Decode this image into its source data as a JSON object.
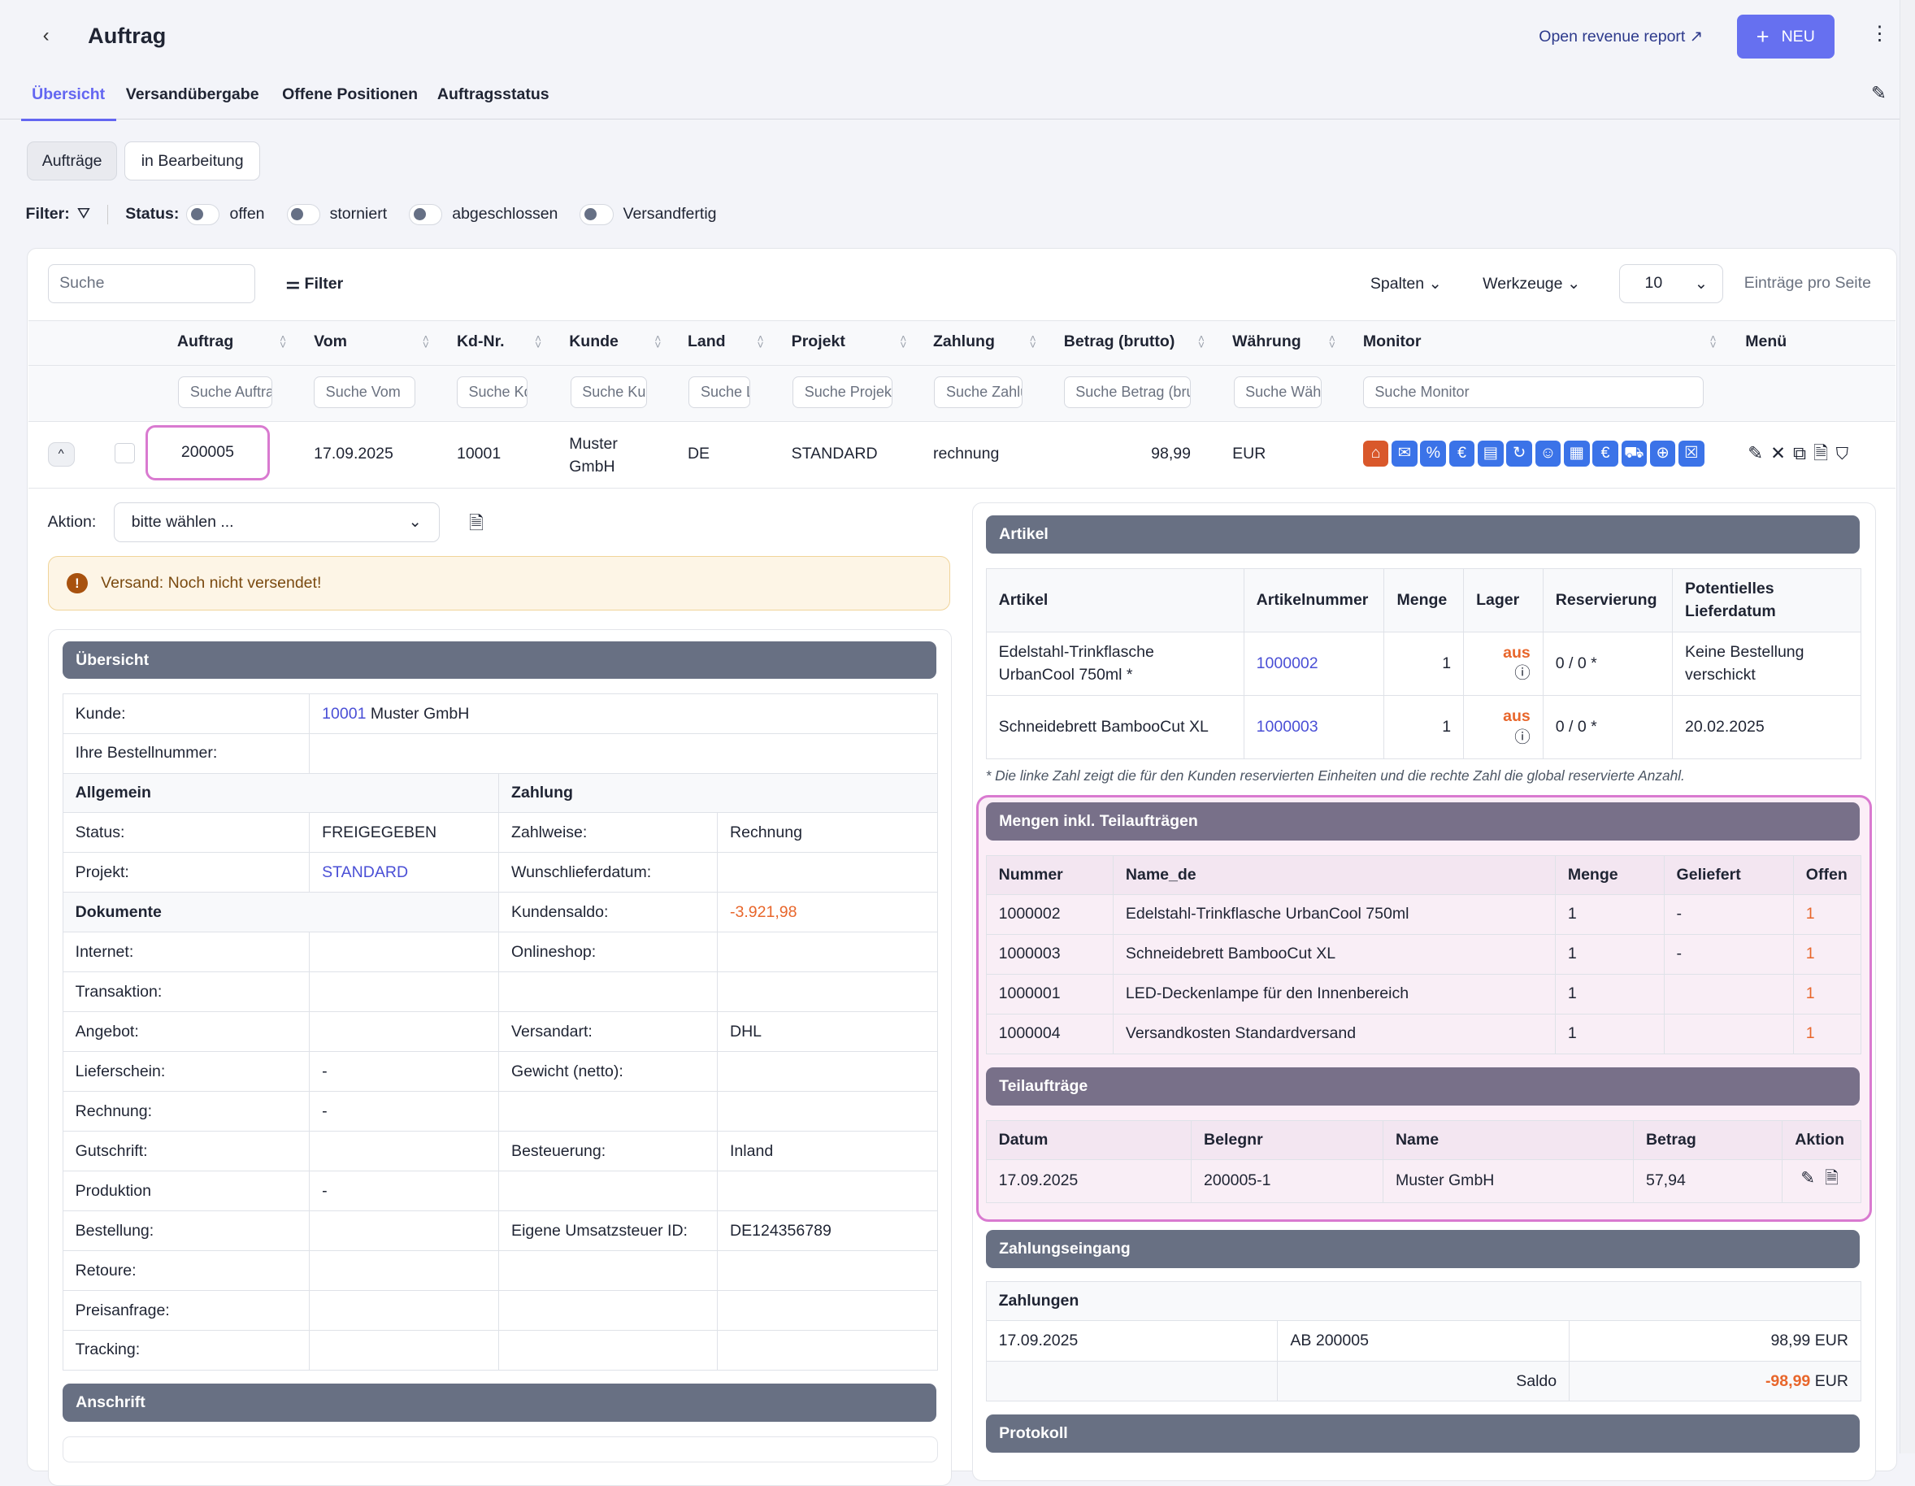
{
  "header": {
    "title": "Auftrag",
    "revenue_link": "Open revenue report",
    "new_button": "NEU"
  },
  "tabs": [
    "Übersicht",
    "Versandübergabe",
    "Offene Positionen",
    "Auftragsstatus"
  ],
  "views": [
    "Aufträge",
    "in Bearbeitung"
  ],
  "filter": {
    "label": "Filter:",
    "status_label": "Status:",
    "toggles": [
      "offen",
      "storniert",
      "abgeschlossen",
      "Versandfertig"
    ]
  },
  "toolbar": {
    "search_placeholder": "Suche",
    "filter_button": "Filter",
    "columns": "Spalten",
    "tools": "Werkzeuge",
    "per_page_value": "10",
    "per_page_label": "Einträge pro Seite"
  },
  "columns": [
    "Auftrag",
    "Vom",
    "Kd-Nr.",
    "Kunde",
    "Land",
    "Projekt",
    "Zahlung",
    "Betrag (brutto)",
    "Währung",
    "Monitor",
    "Menü"
  ],
  "column_search": [
    "Suche Auftrag",
    "Suche Vom",
    "Suche Kd-Nr.",
    "Suche Kunde",
    "Suche Land",
    "Suche Projekt",
    "Suche Zahlung",
    "Suche Betrag (brutto)",
    "Suche Währung",
    "Suche Monitor"
  ],
  "row": {
    "auftrag": "200005",
    "vom": "17.09.2025",
    "kdnr": "10001",
    "kunde": "Muster GmbH",
    "land": "DE",
    "projekt": "STANDARD",
    "zahlung": "rechnung",
    "betrag": "98,99",
    "waehrung": "EUR"
  },
  "monitor_icons": [
    {
      "name": "shipping-blocked",
      "color": "#d9582b"
    },
    {
      "name": "mail",
      "color": "#3b73e8"
    },
    {
      "name": "discount",
      "color": "#3b73e8"
    },
    {
      "name": "euro",
      "color": "#3b73e8"
    },
    {
      "name": "cash",
      "color": "#3b73e8"
    },
    {
      "name": "archive-sync",
      "color": "#3b73e8"
    },
    {
      "name": "customer",
      "color": "#3b73e8"
    },
    {
      "name": "calendar",
      "color": "#3b73e8"
    },
    {
      "name": "coins-euro",
      "color": "#3b73e8"
    },
    {
      "name": "truck",
      "color": "#3b73e8"
    },
    {
      "name": "globe-check",
      "color": "#3b73e8"
    },
    {
      "name": "package-x",
      "color": "#3b73e8"
    }
  ],
  "aktion": {
    "label": "Aktion:",
    "value": "bitte wählen ..."
  },
  "warning": "Versand: Noch nicht versendet!",
  "overview": {
    "title": "Übersicht",
    "kunde_label": "Kunde:",
    "kunde_nr": "10001",
    "kunde_name": "Muster GmbH",
    "bestell_label": "Ihre Bestellnummer:",
    "allgemein": "Allgemein",
    "zahlung": "Zahlung",
    "dokumente": "Dokumente",
    "rows": [
      [
        "Status:",
        "FREIGEGEBEN",
        "Zahlweise:",
        "Rechnung"
      ],
      [
        "Projekt:",
        "STANDARD",
        "Wunschlieferdatum:",
        ""
      ],
      [
        "__dok",
        "",
        "Kundensaldo:",
        "-3.921,98"
      ],
      [
        "Internet:",
        "",
        "Onlineshop:",
        ""
      ],
      [
        "Transaktion:",
        "",
        "",
        ""
      ],
      [
        "Angebot:",
        "",
        "Versandart:",
        "DHL"
      ],
      [
        "Lieferschein:",
        "-",
        "Gewicht (netto):",
        ""
      ],
      [
        "Rechnung:",
        "-",
        "",
        ""
      ],
      [
        "Gutschrift:",
        "",
        "Besteuerung:",
        "Inland"
      ],
      [
        "Produktion",
        "-",
        "",
        ""
      ],
      [
        "Bestellung:",
        "",
        "Eigene Umsatzsteuer ID:",
        "DE124356789"
      ],
      [
        "Retoure:",
        "",
        "",
        ""
      ],
      [
        "Preisanfrage:",
        "",
        "",
        ""
      ],
      [
        "Tracking:",
        "",
        "",
        ""
      ]
    ],
    "anschrift": "Anschrift"
  },
  "artikel": {
    "title": "Artikel",
    "headers": [
      "Artikel",
      "Artikelnummer",
      "Menge",
      "Lager",
      "Reservierung",
      "Potentielles Lieferdatum"
    ],
    "rows": [
      {
        "name": "Edelstahl-Trinkflasche UrbanCool 750ml *",
        "nr": "1000002",
        "menge": "1",
        "lager": "aus",
        "res": "0 / 0 *",
        "datum": "Keine Bestellung verschickt"
      },
      {
        "name": "Schneidebrett BambooCut XL",
        "nr": "1000003",
        "menge": "1",
        "lager": "aus",
        "res": "0 / 0 *",
        "datum": "20.02.2025"
      }
    ],
    "note": "* Die linke Zahl zeigt die für den Kunden reservierten Einheiten und die rechte Zahl die global reservierte Anzahl."
  },
  "mengen": {
    "title": "Mengen inkl. Teilaufträgen",
    "headers": [
      "Nummer",
      "Name_de",
      "Menge",
      "Geliefert",
      "Offen"
    ],
    "rows": [
      [
        "1000002",
        "Edelstahl-Trinkflasche UrbanCool 750ml",
        "1",
        "-",
        "1"
      ],
      [
        "1000003",
        "Schneidebrett BambooCut XL",
        "1",
        "-",
        "1"
      ],
      [
        "1000001",
        "LED-Deckenlampe für den Innenbereich",
        "1",
        "",
        "1"
      ],
      [
        "1000004",
        "Versandkosten Standardversand",
        "1",
        "",
        "1"
      ]
    ]
  },
  "teil": {
    "title": "Teilaufträge",
    "headers": [
      "Datum",
      "Belegnr",
      "Name",
      "Betrag",
      "Aktion"
    ],
    "rows": [
      [
        "17.09.2025",
        "200005-1",
        "Muster GmbH",
        "57,94"
      ]
    ]
  },
  "zahlung": {
    "title": "Zahlungseingang",
    "sub": "Zahlungen",
    "rows": [
      [
        "17.09.2025",
        "AB 200005",
        "98,99",
        "EUR"
      ]
    ],
    "saldo_label": "Saldo",
    "saldo": "-98,99",
    "saldo_cur": "EUR"
  },
  "protokoll": "Protokoll",
  "colors": {
    "accent": "#6366f1",
    "bar": "#687083",
    "pink_bar": "#787089",
    "negative": "#e8662b",
    "highlight": "#d97ad0"
  }
}
